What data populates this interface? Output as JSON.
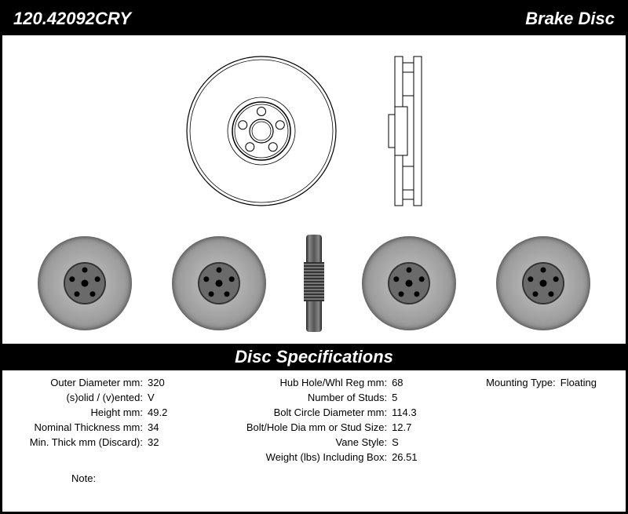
{
  "header": {
    "part_number": "120.42092CRY",
    "product_type": "Brake Disc"
  },
  "spec_banner": "Disc Specifications",
  "diagram": {
    "stud_count": 5,
    "stud_orbit_radius": 18,
    "front_view": {
      "outer_r": 95,
      "inner_r": 34,
      "hub_r": 14
    },
    "side_view": {
      "width": 34,
      "height": 190
    }
  },
  "photos": {
    "count_face": 4,
    "stud_count": 5,
    "stud_orbit_radius": 17
  },
  "specs": {
    "col1": [
      {
        "label": "Outer Diameter mm:",
        "value": "320"
      },
      {
        "label": "(s)olid / (v)ented:",
        "value": "V"
      },
      {
        "label": "Height mm:",
        "value": "49.2"
      },
      {
        "label": "Nominal Thickness mm:",
        "value": "34"
      },
      {
        "label": "Min. Thick mm (Discard):",
        "value": "32"
      }
    ],
    "col2": [
      {
        "label": "Hub Hole/Whl Reg mm:",
        "value": "68"
      },
      {
        "label": "Number of Studs:",
        "value": "5"
      },
      {
        "label": "Bolt Circle Diameter mm:",
        "value": "114.3"
      },
      {
        "label": "Bolt/Hole Dia mm or Stud Size:",
        "value": "12.7"
      },
      {
        "label": "Vane Style:",
        "value": "S"
      },
      {
        "label": "Weight (lbs) Including Box:",
        "value": "26.51"
      }
    ],
    "col3": [
      {
        "label": "Mounting Type:",
        "value": "Floating"
      }
    ]
  },
  "note_label": "Note:",
  "note_value": ""
}
